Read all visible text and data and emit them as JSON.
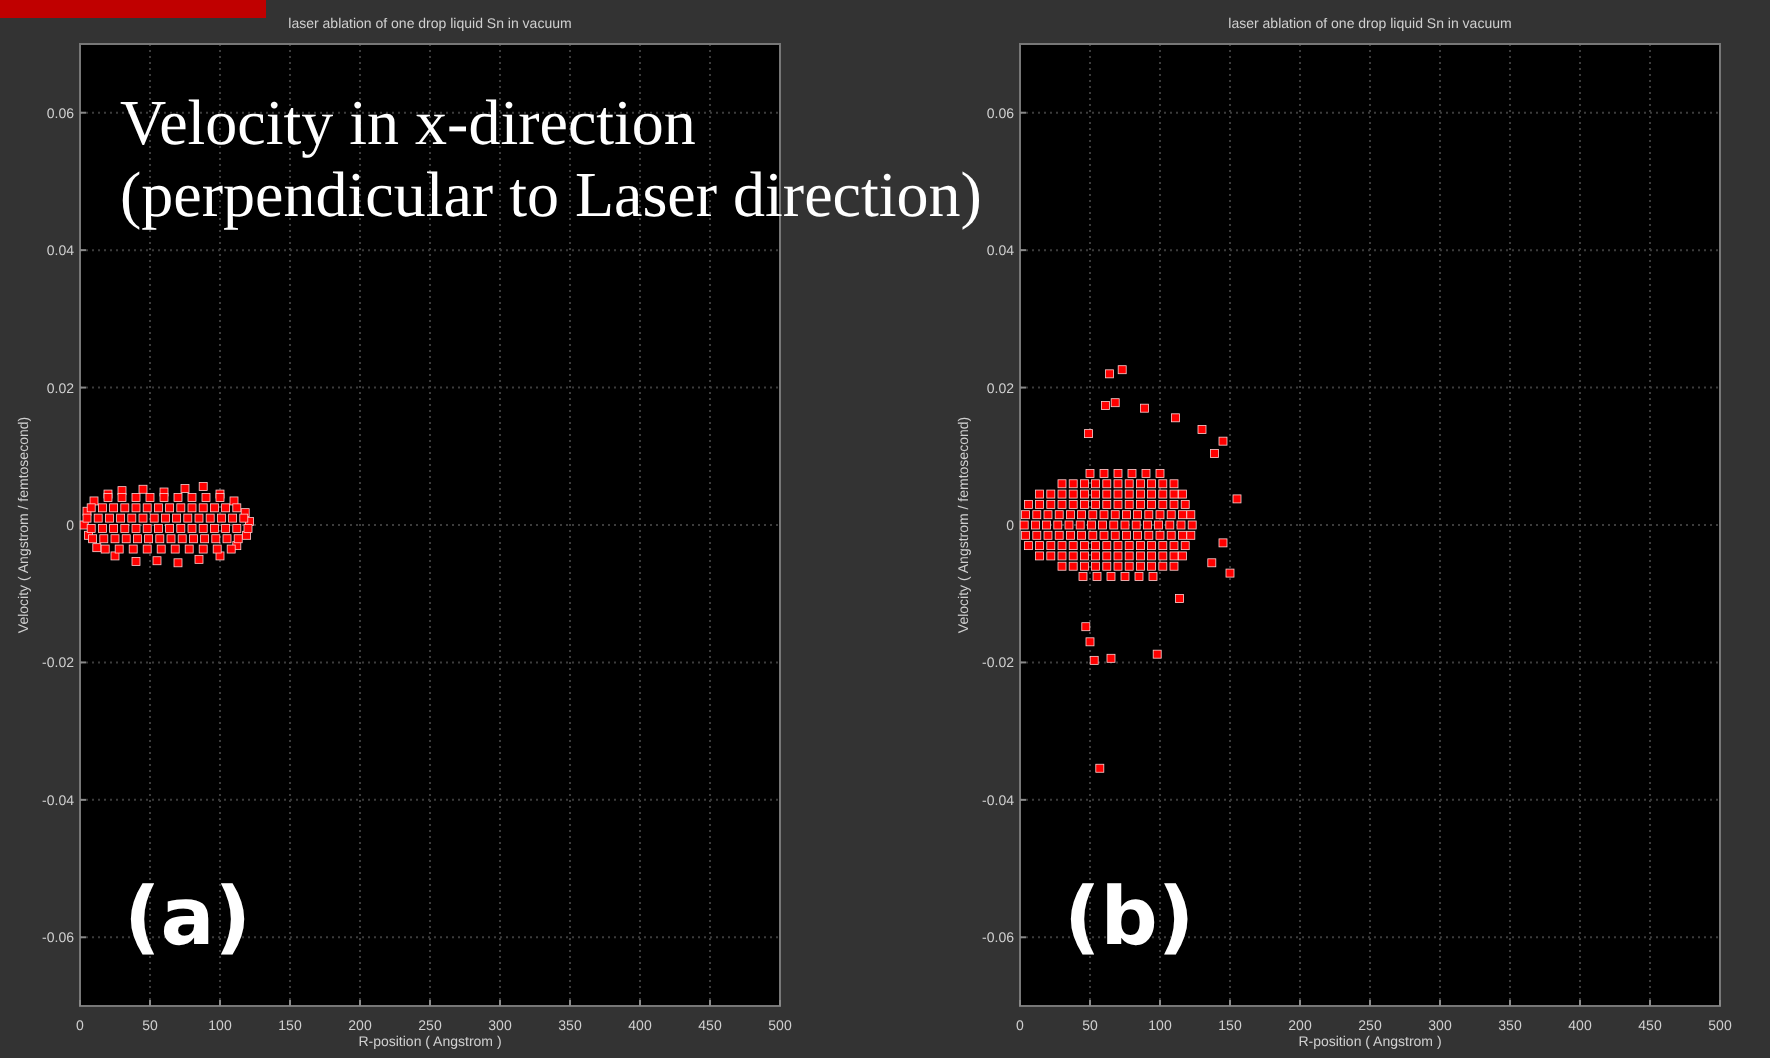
{
  "chart_data": [
    {
      "type": "scatter",
      "title": "laser ablation of one drop liquid Sn in vacuum",
      "xlabel": "R-position ( Angstrom )",
      "ylabel": "Velocity ( Angstrom / femtosecond)",
      "annotations": [
        "Velocity in x-direction\n(perpendicular to Laser direction)",
        "(a)"
      ],
      "xlim": [
        0,
        500
      ],
      "xticks": [
        0,
        50,
        100,
        150,
        200,
        250,
        300,
        350,
        400,
        450,
        500
      ],
      "ylim": [
        -0.07,
        0.07
      ],
      "yticks": [
        -0.06,
        -0.04,
        -0.02,
        0,
        0.02,
        0.04,
        0.06
      ],
      "grid": true,
      "marker": "square",
      "series": [
        {
          "color": "#ff0000",
          "x": [
            3,
            5,
            10,
            20,
            30,
            45,
            60,
            75,
            88,
            100,
            110,
            118,
            121,
            119,
            112,
            100,
            85,
            70,
            55,
            40,
            25,
            12,
            6,
            20,
            30,
            40,
            50,
            60,
            70,
            80,
            90,
            100,
            8,
            16,
            24,
            32,
            40,
            48,
            56,
            64,
            72,
            80,
            88,
            96,
            104,
            112,
            5,
            13,
            21,
            29,
            37,
            45,
            53,
            61,
            69,
            77,
            85,
            93,
            101,
            109,
            117,
            8,
            16,
            24,
            32,
            40,
            48,
            56,
            64,
            72,
            80,
            88,
            96,
            104,
            112,
            120,
            9,
            17,
            25,
            33,
            41,
            49,
            57,
            65,
            73,
            81,
            89,
            97,
            105,
            113,
            18,
            28,
            38,
            48,
            58,
            68,
            78,
            88,
            98,
            108
          ],
          "values": [
            0,
            0.002,
            0.0035,
            0.0045,
            0.005,
            0.0052,
            0.0048,
            0.0053,
            0.0056,
            0.0045,
            0.0035,
            0.0018,
            0.0005,
            -0.0015,
            -0.003,
            -0.0045,
            -0.005,
            -0.0055,
            -0.0052,
            -0.0053,
            -0.0045,
            -0.0033,
            -0.0015,
            0.004,
            0.004,
            0.004,
            0.004,
            0.004,
            0.004,
            0.004,
            0.004,
            0.004,
            0.0025,
            0.0025,
            0.0025,
            0.0025,
            0.0025,
            0.0025,
            0.0025,
            0.0025,
            0.0025,
            0.0025,
            0.0025,
            0.0025,
            0.0025,
            0.0025,
            0.001,
            0.001,
            0.001,
            0.001,
            0.001,
            0.001,
            0.001,
            0.001,
            0.001,
            0.001,
            0.001,
            0.001,
            0.001,
            0.001,
            0.001,
            -0.0005,
            -0.0005,
            -0.0005,
            -0.0005,
            -0.0005,
            -0.0005,
            -0.0005,
            -0.0005,
            -0.0005,
            -0.0005,
            -0.0005,
            -0.0005,
            -0.0005,
            -0.0005,
            -0.0005,
            -0.002,
            -0.002,
            -0.002,
            -0.002,
            -0.002,
            -0.002,
            -0.002,
            -0.002,
            -0.002,
            -0.002,
            -0.002,
            -0.002,
            -0.002,
            -0.002,
            -0.0035,
            -0.0035,
            -0.0035,
            -0.0035,
            -0.0035,
            -0.0035,
            -0.0035,
            -0.0035,
            -0.0035,
            -0.0035
          ]
        }
      ]
    },
    {
      "type": "scatter",
      "title": "laser ablation of one drop liquid Sn in vacuum",
      "xlabel": "R-position ( Angstrom )",
      "ylabel": "Velocity ( Angstrom / femtosecond)",
      "annotations": [
        "(b)"
      ],
      "xlim": [
        0,
        500
      ],
      "xticks": [
        0,
        50,
        100,
        150,
        200,
        250,
        300,
        350,
        400,
        450,
        500
      ],
      "ylim": [
        -0.07,
        0.07
      ],
      "yticks": [
        -0.06,
        -0.04,
        -0.02,
        0,
        0.02,
        0.04,
        0.06
      ],
      "grid": true,
      "marker": "square",
      "series": [
        {
          "color": "#ff0000",
          "x": [
            50,
            60,
            70,
            80,
            90,
            100,
            30,
            38,
            46,
            54,
            62,
            70,
            78,
            86,
            94,
            102,
            110,
            14,
            22,
            30,
            38,
            46,
            54,
            62,
            70,
            78,
            86,
            94,
            102,
            110,
            116,
            6,
            14,
            22,
            30,
            38,
            46,
            54,
            62,
            70,
            78,
            86,
            94,
            102,
            110,
            118,
            4,
            12,
            20,
            28,
            36,
            44,
            52,
            60,
            68,
            76,
            84,
            92,
            100,
            108,
            116,
            122,
            3,
            11,
            19,
            27,
            35,
            43,
            51,
            59,
            67,
            75,
            83,
            91,
            99,
            107,
            115,
            123,
            4,
            12,
            20,
            28,
            36,
            44,
            52,
            60,
            68,
            76,
            84,
            92,
            100,
            108,
            116,
            122,
            6,
            14,
            22,
            30,
            38,
            46,
            54,
            62,
            70,
            78,
            86,
            94,
            102,
            110,
            118,
            14,
            22,
            30,
            38,
            46,
            54,
            62,
            70,
            78,
            86,
            94,
            102,
            110,
            116,
            30,
            38,
            46,
            54,
            62,
            70,
            78,
            86,
            94,
            102,
            110,
            45,
            55,
            65,
            75,
            85,
            95,
            73,
            64,
            68,
            89,
            111,
            130,
            145,
            155,
            150,
            145,
            98,
            57,
            53,
            65,
            47,
            50,
            114,
            139,
            49,
            61,
            137
          ],
          "values": [
            0.0075,
            0.0075,
            0.0075,
            0.0075,
            0.0075,
            0.0075,
            0.006,
            0.006,
            0.006,
            0.006,
            0.006,
            0.006,
            0.006,
            0.006,
            0.006,
            0.006,
            0.006,
            0.0045,
            0.0045,
            0.0045,
            0.0045,
            0.0045,
            0.0045,
            0.0045,
            0.0045,
            0.0045,
            0.0045,
            0.0045,
            0.0045,
            0.0045,
            0.0045,
            0.003,
            0.003,
            0.003,
            0.003,
            0.003,
            0.003,
            0.003,
            0.003,
            0.003,
            0.003,
            0.003,
            0.003,
            0.003,
            0.003,
            0.003,
            0.0015,
            0.0015,
            0.0015,
            0.0015,
            0.0015,
            0.0015,
            0.0015,
            0.0015,
            0.0015,
            0.0015,
            0.0015,
            0.0015,
            0.0015,
            0.0015,
            0.0015,
            0.0015,
            0,
            0,
            0,
            0,
            0,
            0,
            0,
            0,
            0,
            0,
            0,
            0,
            0,
            0,
            0,
            0,
            -0.0015,
            -0.0015,
            -0.0015,
            -0.0015,
            -0.0015,
            -0.0015,
            -0.0015,
            -0.0015,
            -0.0015,
            -0.0015,
            -0.0015,
            -0.0015,
            -0.0015,
            -0.0015,
            -0.0015,
            -0.0015,
            -0.003,
            -0.003,
            -0.003,
            -0.003,
            -0.003,
            -0.003,
            -0.003,
            -0.003,
            -0.003,
            -0.003,
            -0.003,
            -0.003,
            -0.003,
            -0.003,
            -0.003,
            -0.0045,
            -0.0045,
            -0.0045,
            -0.0045,
            -0.0045,
            -0.0045,
            -0.0045,
            -0.0045,
            -0.0045,
            -0.0045,
            -0.0045,
            -0.0045,
            -0.0045,
            -0.0045,
            -0.006,
            -0.006,
            -0.006,
            -0.006,
            -0.006,
            -0.006,
            -0.006,
            -0.006,
            -0.006,
            -0.006,
            -0.006,
            -0.0075,
            -0.0075,
            -0.0075,
            -0.0075,
            -0.0075,
            -0.0075,
            0.0226,
            0.022,
            0.0178,
            0.017,
            0.0156,
            0.0139,
            0.0122,
            0.0038,
            -0.007,
            -0.0026,
            -0.0188,
            -0.0354,
            -0.0197,
            -0.0194,
            -0.0148,
            -0.017,
            -0.0107,
            0.0104,
            0.0133,
            0.0174,
            -0.0055
          ]
        }
      ]
    }
  ]
}
